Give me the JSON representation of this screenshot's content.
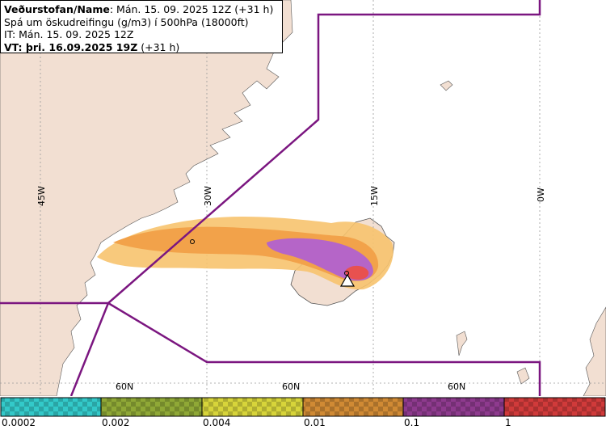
{
  "header": {
    "org": "Veðurstofan/Name",
    "org_value": ": Mán. 15. 09. 2025 12Z (+31 h)",
    "description": "Spá um öskudreifingu (g/m3) í 500hPa (18000ft)",
    "issue_time": "IT: Mán. 15. 09. 2025 12Z",
    "valid_prefix": "VT: þri. 16.09.2025 19Z",
    "valid_suffix": " (+31 h)"
  },
  "map": {
    "meridian_labels": [
      "45W",
      "30W",
      "15W",
      "0W"
    ],
    "parallel_labels": [
      "60N",
      "60N",
      "60N"
    ],
    "volcano_marker": "volcano-triangle-icon",
    "colors": {
      "land": "#f2dfd2",
      "sea": "#ffffff",
      "boundary": "#7b1680",
      "grid": "#9a9a9a",
      "ash_low": "#f7c36e",
      "ash_mid": "#f2a24a",
      "ash_high": "#b565c8",
      "ash_peak": "#e8514f"
    }
  },
  "legend": {
    "labels": [
      "0.0002",
      "0.002",
      "0.004",
      "0.01",
      "0.1",
      "1"
    ],
    "colors": [
      "#33c9c9",
      "#8fa836",
      "#d7d43a",
      "#d08a34",
      "#8e3a8e",
      "#d03a3a"
    ]
  }
}
